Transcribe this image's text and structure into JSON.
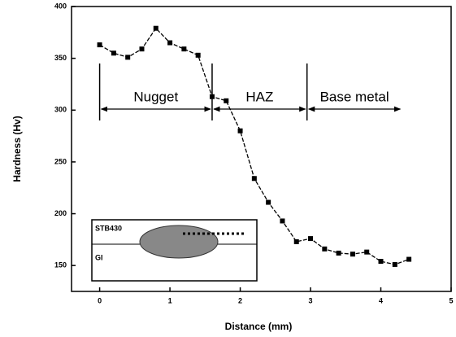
{
  "chart_data": {
    "type": "line",
    "x_label": "Distance (mm)",
    "y_label": "Hardness (Hv)",
    "x": [
      0,
      0.2,
      0.4,
      0.6,
      0.8,
      1.0,
      1.2,
      1.4,
      1.6,
      1.8,
      2.0,
      2.2,
      2.4,
      2.6,
      2.8,
      3.0,
      3.2,
      3.4,
      3.6,
      3.8,
      4.0,
      4.2,
      4.4
    ],
    "series": [
      {
        "color": "#000000",
        "values": [
          363,
          355,
          351,
          359,
          379,
          365,
          359,
          353,
          313,
          309,
          280,
          234,
          211,
          193,
          173,
          176,
          166,
          162,
          161,
          163,
          154,
          151,
          156
        ]
      }
    ],
    "xlim": [
      -0.4,
      5
    ],
    "ylim": [
      125,
      400
    ],
    "xticks": [
      0,
      1,
      2,
      3,
      4,
      5
    ],
    "yticks": [
      150,
      200,
      250,
      300,
      350,
      400
    ],
    "zones": [
      "Nugget",
      "HAZ",
      "Base metal"
    ],
    "zone_bounds": [
      0,
      1.6,
      2.95,
      4.3
    ],
    "inset": {
      "top": "STB430",
      "bottom": "GI"
    }
  }
}
